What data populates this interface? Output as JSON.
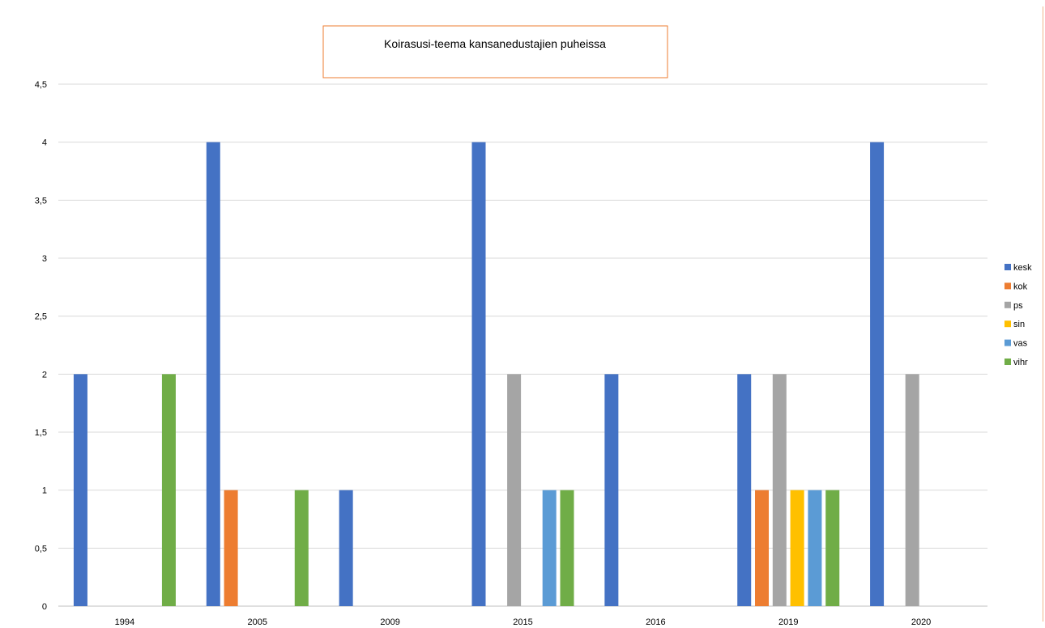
{
  "chart_data": {
    "type": "bar",
    "title": "Koirasusi-teema kansanedustajien puheissa",
    "categories": [
      "1994",
      "2005",
      "2009",
      "2015",
      "2016",
      "2019",
      "2020"
    ],
    "series": [
      {
        "name": "kesk",
        "color": "#4472C4",
        "values": [
          2,
          4,
          1,
          4,
          2,
          2,
          4
        ]
      },
      {
        "name": "kok",
        "color": "#ED7D31",
        "values": [
          0,
          1,
          0,
          0,
          0,
          1,
          0
        ]
      },
      {
        "name": "ps",
        "color": "#A5A5A5",
        "values": [
          0,
          0,
          0,
          2,
          0,
          2,
          2
        ]
      },
      {
        "name": "sin",
        "color": "#FFC000",
        "values": [
          0,
          0,
          0,
          0,
          0,
          1,
          0
        ]
      },
      {
        "name": "vas",
        "color": "#5B9BD5",
        "values": [
          0,
          0,
          0,
          1,
          0,
          1,
          0
        ]
      },
      {
        "name": "vihr",
        "color": "#70AD47",
        "values": [
          2,
          1,
          0,
          1,
          0,
          1,
          0
        ]
      }
    ],
    "y_ticks": [
      "0",
      "0,5",
      "1",
      "1,5",
      "2",
      "2,5",
      "3",
      "3,5",
      "4",
      "4,5"
    ],
    "ylim": [
      0,
      4.5
    ],
    "grid": true,
    "legend": "right"
  }
}
